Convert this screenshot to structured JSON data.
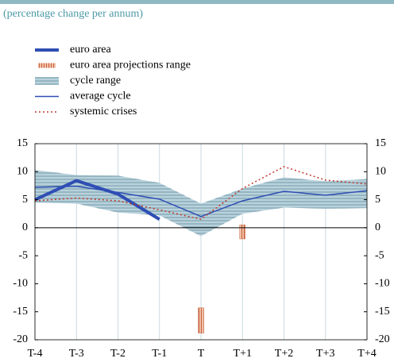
{
  "chart_data": {
    "type": "line",
    "subtitle": "(percentage change per annum)",
    "categories": [
      "T-4",
      "T-3",
      "T-2",
      "T-1",
      "T",
      "T+1",
      "T+2",
      "T+3",
      "T+4"
    ],
    "ylim": [
      -20,
      15
    ],
    "yticks": [
      -20,
      -15,
      -10,
      -5,
      0,
      5,
      10,
      15
    ],
    "grid": true,
    "series": [
      {
        "name": "euro area",
        "kind": "line",
        "color": "#2f4eb4",
        "width": 4,
        "values": [
          5.0,
          8.4,
          6.0,
          1.5,
          null,
          null,
          null,
          null,
          null
        ]
      },
      {
        "name": "euro area projections range",
        "kind": "range",
        "color": "#e9a184",
        "low": [
          null,
          null,
          null,
          null,
          -18.8,
          -2.0,
          null,
          null,
          null
        ],
        "high": [
          null,
          null,
          null,
          null,
          -14.3,
          0.5,
          null,
          null,
          null
        ]
      },
      {
        "name": "cycle range",
        "kind": "band",
        "color": "#b9d2dc",
        "low": [
          4.5,
          4.3,
          2.7,
          2.2,
          -1.5,
          2.5,
          3.6,
          3.4,
          3.5
        ],
        "high": [
          10.3,
          9.4,
          9.3,
          8.0,
          4.3,
          7.0,
          9.0,
          8.3,
          8.7
        ]
      },
      {
        "name": "average cycle",
        "kind": "line",
        "color": "#2f4eb4",
        "width": 1.5,
        "values": [
          7.2,
          7.4,
          6.3,
          5.1,
          2.0,
          4.8,
          6.5,
          5.8,
          6.6
        ]
      },
      {
        "name": "systemic crises",
        "kind": "dotted",
        "color": "#c0392b",
        "width": 1.5,
        "values": [
          4.8,
          5.3,
          4.8,
          3.2,
          1.5,
          7.0,
          10.9,
          8.5,
          7.8
        ]
      }
    ]
  }
}
